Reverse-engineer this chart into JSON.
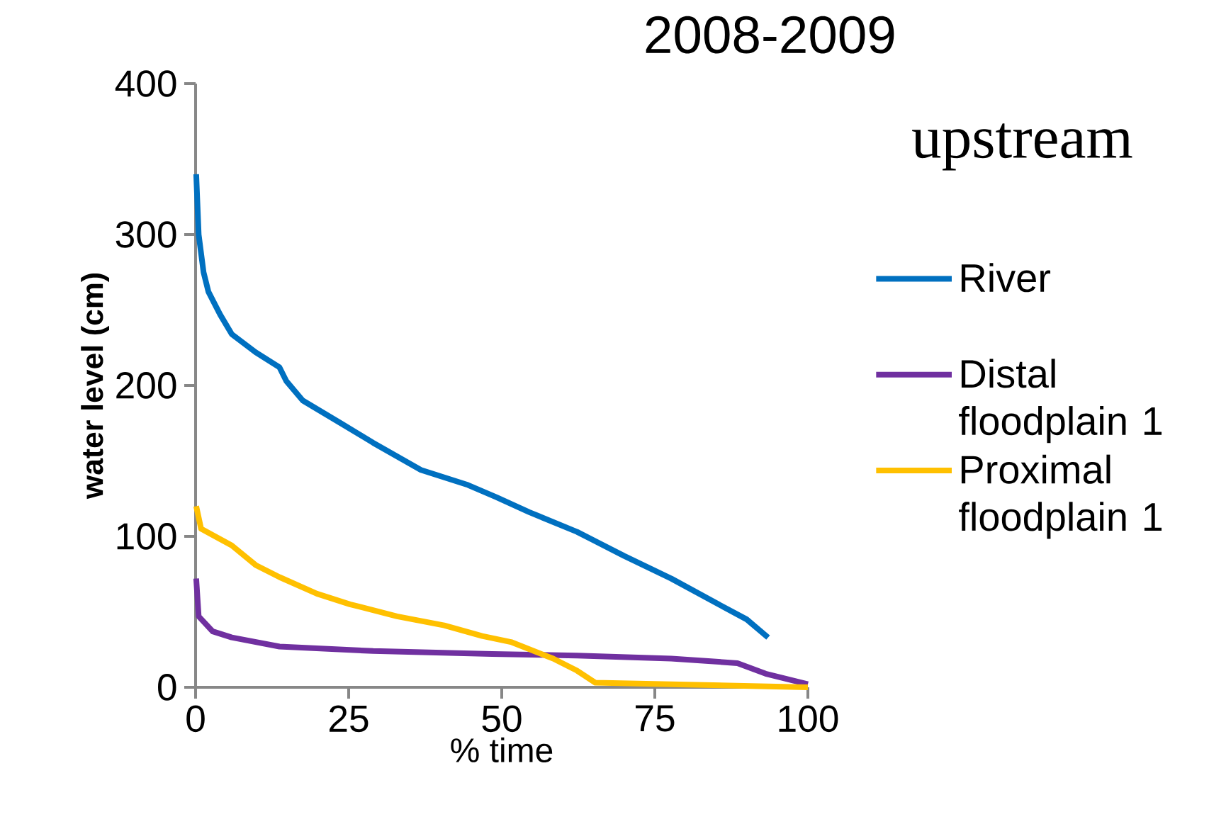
{
  "chart_data": {
    "type": "line",
    "title": "2008-2009",
    "subtitle": "upstream",
    "xlabel": "% time",
    "ylabel": "water level (cm)",
    "xlim": [
      0,
      100
    ],
    "ylim": [
      0,
      400
    ],
    "xticks": [
      0,
      25,
      50,
      75,
      100
    ],
    "yticks": [
      0,
      100,
      200,
      300,
      400
    ],
    "legend": "right",
    "line_style": "solid",
    "series": [
      {
        "name": "River",
        "color": "#0070c0",
        "x": [
          0.1,
          0.5,
          1.3,
          2.1,
          4,
          5.9,
          9.8,
          13.7,
          14.8,
          17.5,
          23.7,
          29,
          36.8,
          44.5,
          49.1,
          54.5,
          62.3,
          70,
          77.7,
          85.4,
          90,
          93.5
        ],
        "values": [
          340,
          300,
          275,
          262,
          247,
          234,
          222,
          212,
          203,
          190,
          175,
          162,
          144,
          134,
          126,
          116,
          103,
          87,
          72,
          55,
          45,
          33
        ]
      },
      {
        "name": "Distal floodplain 1",
        "color": "#7030a0",
        "x": [
          0.1,
          0.5,
          2.8,
          5.9,
          13.7,
          29,
          48.4,
          62.3,
          77.7,
          88.5,
          93.1,
          100
        ],
        "values": [
          72,
          47,
          37,
          33,
          27,
          24,
          22,
          21,
          19,
          16,
          9,
          2
        ]
      },
      {
        "name": "Proximal floodplain 1",
        "color": "#ffc000",
        "x": [
          0.1,
          0.9,
          5.9,
          9.8,
          13.7,
          19.8,
          25.2,
          32.9,
          40.6,
          46.8,
          51.5,
          58.4,
          62.3,
          65.3,
          77.7,
          100
        ],
        "values": [
          120,
          105,
          94,
          81,
          73,
          62,
          55,
          47,
          41,
          34,
          30,
          19,
          11,
          3,
          2,
          0
        ]
      }
    ]
  }
}
